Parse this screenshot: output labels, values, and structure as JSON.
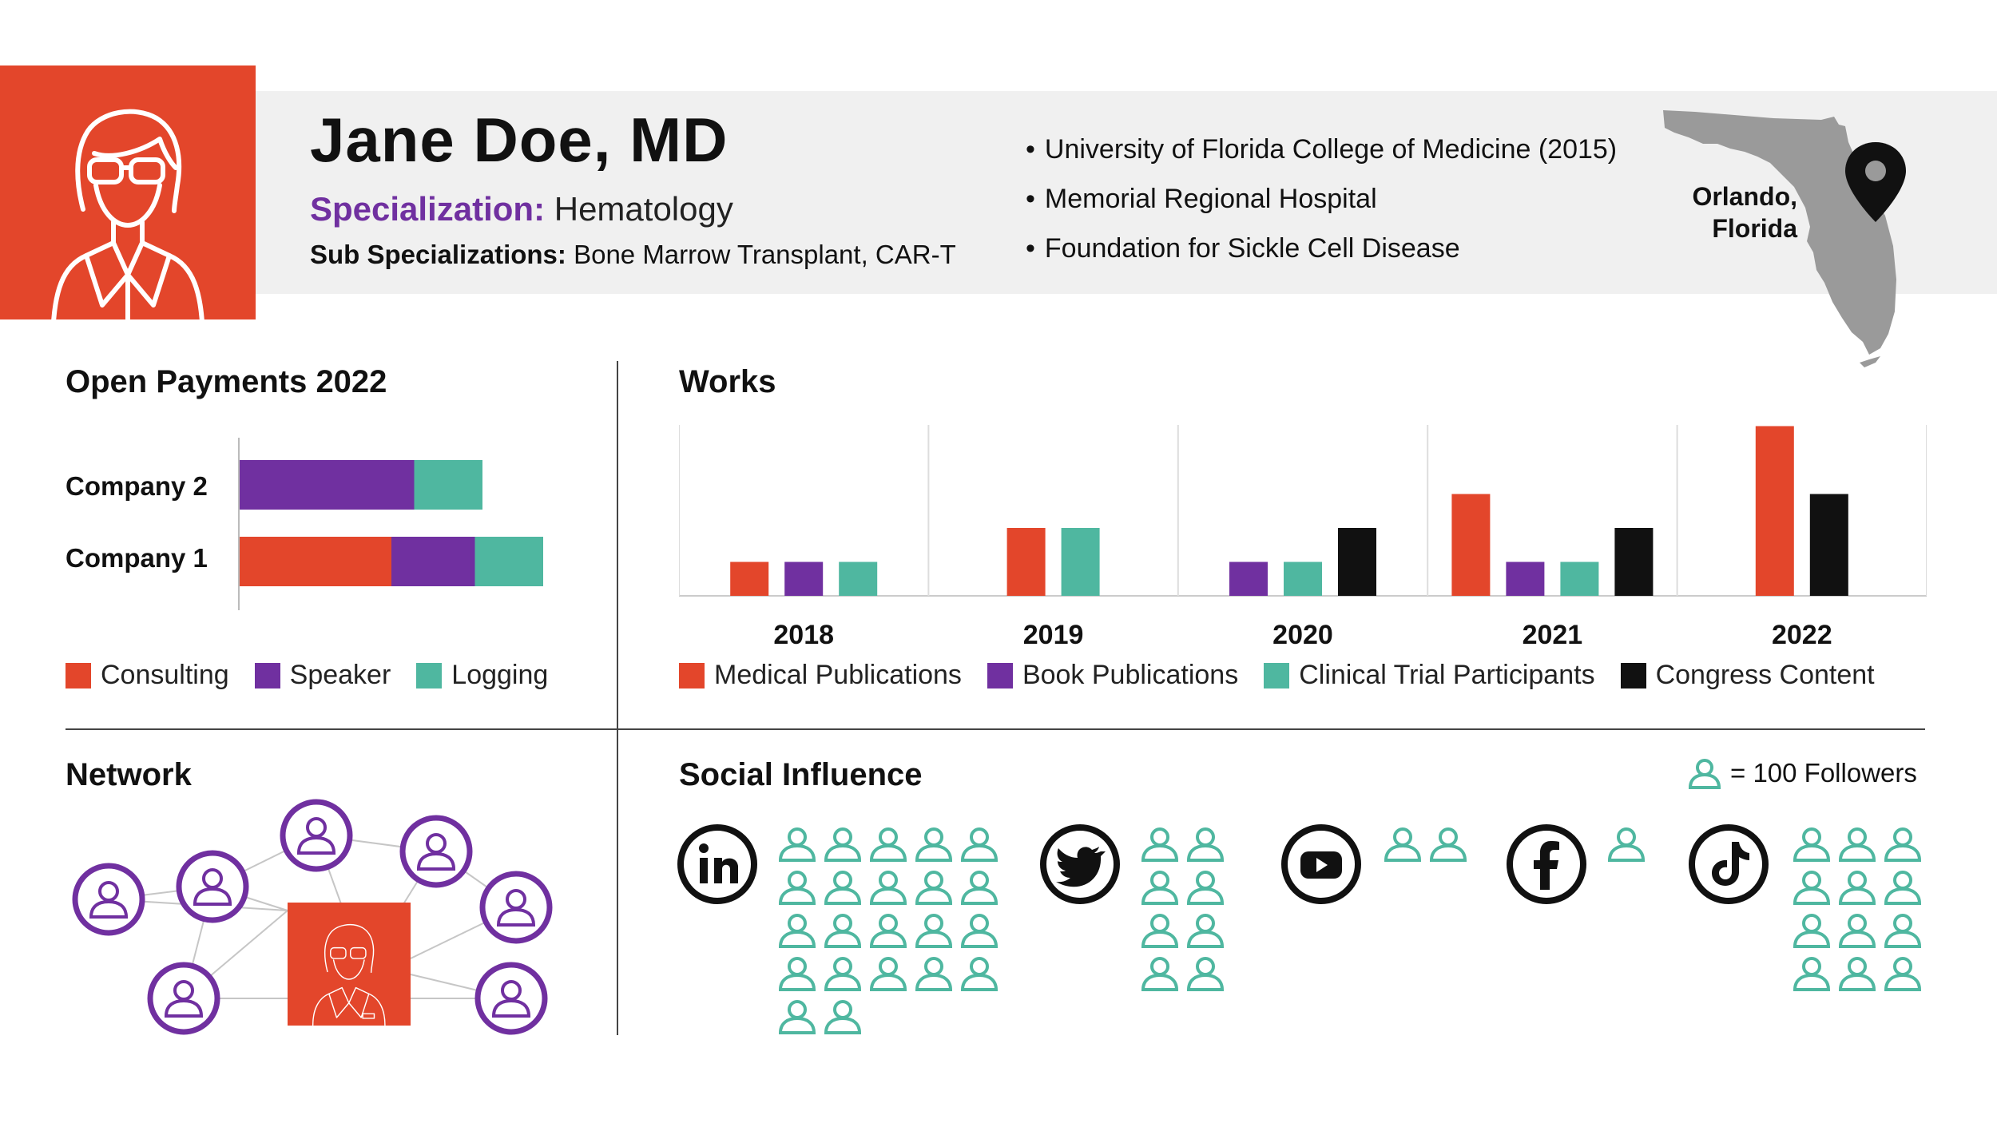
{
  "profile": {
    "name": "Jane Doe, MD",
    "specialization_label": "Specialization:",
    "specialization": "Hematology",
    "sub_specializations_label": "Sub Specializations:",
    "sub_specializations": "Bone Marrow Transplant, CAR-T",
    "affiliations": [
      "University of Florida College of Medicine (2015)",
      "Memorial Regional Hospital",
      "Foundation for Sickle Cell Disease"
    ],
    "location_city": "Orlando,",
    "location_state": "Florida"
  },
  "colors": {
    "accent_red": "#e3462b",
    "purple": "#7030a0",
    "teal": "#4fb7a0",
    "black": "#111111",
    "band": "#f0f0f0",
    "map_gray": "#9a9a9a"
  },
  "icons": {
    "avatar": "doctor-avatar-icon",
    "map": "florida-map-icon",
    "pin": "location-pin-icon",
    "person": "person-icon",
    "linkedin": "linkedin-icon",
    "twitter": "twitter-icon",
    "youtube": "youtube-icon",
    "facebook": "facebook-icon",
    "tiktok": "tiktok-icon"
  },
  "open_payments": {
    "title": "Open Payments 2022",
    "chart_data": {
      "type": "bar",
      "orientation": "horizontal",
      "stacked": true,
      "categories": [
        "Company 2",
        "Company 1"
      ],
      "series": [
        {
          "name": "Consulting",
          "values": [
            0,
            2
          ],
          "color": "#e3462b"
        },
        {
          "name": "Speaker",
          "values": [
            2.3,
            1.1
          ],
          "color": "#7030a0"
        },
        {
          "name": "Logging",
          "values": [
            0.9,
            0.9
          ],
          "color": "#4fb7a0"
        }
      ],
      "xlim": [
        0,
        4.4
      ],
      "grid": false,
      "legend": "bottom"
    }
  },
  "works": {
    "title": "Works",
    "chart_data": {
      "type": "bar",
      "categories": [
        "2018",
        "2019",
        "2020",
        "2021",
        "2022"
      ],
      "series": [
        {
          "name": "Medical Publications",
          "values": [
            1,
            2,
            0,
            3,
            5
          ],
          "color": "#e3462b"
        },
        {
          "name": "Book Publications",
          "values": [
            1,
            0,
            1,
            1,
            0
          ],
          "color": "#7030a0"
        },
        {
          "name": "Clinical Trial Participants",
          "values": [
            1,
            2,
            1,
            1,
            0
          ],
          "color": "#4fb7a0"
        },
        {
          "name": "Congress Content",
          "values": [
            0,
            0,
            2,
            2,
            3
          ],
          "color": "#111111"
        }
      ],
      "ylim": [
        0,
        5
      ],
      "grid": "vertical separators",
      "legend": "bottom"
    }
  },
  "network": {
    "title": "Network",
    "connection_count": 7
  },
  "social": {
    "title": "Social Influence",
    "key_text": "= 100 Followers",
    "platforms": [
      {
        "name": "linkedin-icon",
        "icon_count": 22,
        "columns": 5
      },
      {
        "name": "twitter-icon",
        "icon_count": 8,
        "columns": 2
      },
      {
        "name": "youtube-icon",
        "icon_count": 2,
        "columns": 2
      },
      {
        "name": "facebook-icon",
        "icon_count": 1,
        "columns": 1
      },
      {
        "name": "tiktok-icon",
        "icon_count": 12,
        "columns": 3
      }
    ]
  }
}
